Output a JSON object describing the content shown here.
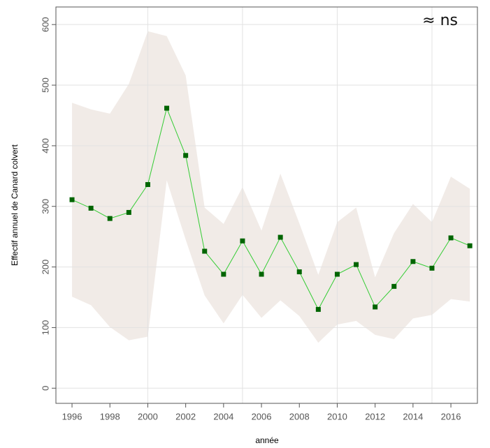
{
  "chart_data": {
    "type": "line",
    "x": [
      1996,
      1997,
      1998,
      1999,
      2000,
      2001,
      2002,
      2003,
      2004,
      2005,
      2006,
      2007,
      2008,
      2009,
      2010,
      2011,
      2012,
      2013,
      2014,
      2015,
      2016,
      2017
    ],
    "values": [
      311,
      297,
      280,
      290,
      336,
      462,
      384,
      226,
      188,
      243,
      188,
      249,
      192,
      130,
      188,
      204,
      134,
      168,
      209,
      198,
      248,
      235
    ],
    "upper": [
      471,
      460,
      453,
      502,
      589,
      581,
      516,
      298,
      271,
      332,
      260,
      354,
      272,
      187,
      274,
      298,
      183,
      256,
      304,
      274,
      349,
      329
    ],
    "lower": [
      151,
      137,
      101,
      79,
      85,
      343,
      245,
      153,
      107,
      154,
      116,
      145,
      119,
      75,
      105,
      111,
      88,
      81,
      115,
      121,
      147,
      143
    ],
    "color": "#006400",
    "line_color": "#33cc33",
    "band_color": "#f1ebe7",
    "xlim": [
      1995.15,
      2017.4
    ],
    "ylim": [
      -25,
      629
    ],
    "xticks": [
      1996,
      1998,
      2000,
      2002,
      2004,
      2006,
      2008,
      2010,
      2012,
      2014,
      2016
    ],
    "yticks": [
      0,
      100,
      200,
      300,
      400,
      500,
      600
    ],
    "xgrid": [
      2000,
      2005,
      2010,
      2015
    ],
    "grid": true,
    "xlabel": "année",
    "ylabel": "Effectif annuel de Canard colvert",
    "annotation": "≈ ns"
  }
}
